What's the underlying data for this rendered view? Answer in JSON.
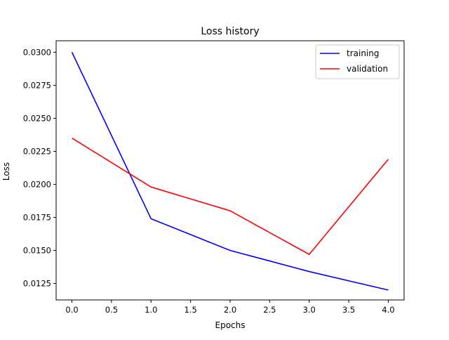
{
  "chart_data": {
    "type": "line",
    "title": "Loss history",
    "xlabel": "Epochs",
    "ylabel": "Loss",
    "xlim": [
      -0.2,
      4.2
    ],
    "ylim": [
      0.01125,
      0.03087
    ],
    "x_ticks": [
      0.0,
      0.5,
      1.0,
      1.5,
      2.0,
      2.5,
      3.0,
      3.5,
      4.0
    ],
    "x_tick_labels": [
      "0.0",
      "0.5",
      "1.0",
      "1.5",
      "2.0",
      "2.5",
      "3.0",
      "3.5",
      "4.0"
    ],
    "y_ticks": [
      0.0125,
      0.015,
      0.0175,
      0.02,
      0.0225,
      0.025,
      0.0275,
      0.03
    ],
    "y_tick_labels": [
      "0.0125",
      "0.0150",
      "0.0175",
      "0.0200",
      "0.0225",
      "0.0250",
      "0.0275",
      "0.0300"
    ],
    "grid": false,
    "legend_position": "top-right",
    "x": [
      0,
      1,
      2,
      3,
      4
    ],
    "series": [
      {
        "name": "training",
        "color": "#0000ff",
        "values": [
          0.03,
          0.0174,
          0.015,
          0.0134,
          0.012
        ]
      },
      {
        "name": "validation",
        "color": "#ff0000",
        "values": [
          0.0235,
          0.0198,
          0.018,
          0.0147,
          0.0219
        ]
      }
    ]
  }
}
